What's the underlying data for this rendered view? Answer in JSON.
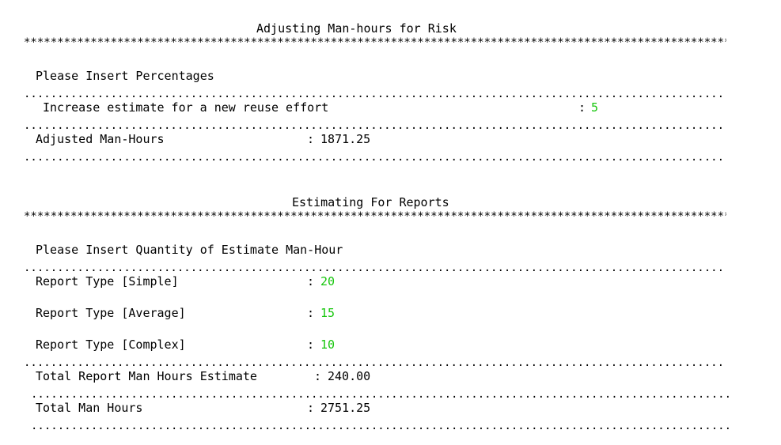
{
  "risk": {
    "title": "Adjusting Man-hours for Risk",
    "prompt": "Please Insert Percentages",
    "reuse_label": "Increase estimate for a new reuse effort",
    "reuse_sep": ":",
    "reuse_value": "5",
    "adjusted_label": "Adjusted Man-Hours",
    "adjusted_sep": ":",
    "adjusted_value": "1871.25"
  },
  "reports": {
    "title": "Estimating For Reports",
    "prompt": "Please Insert Quantity of Estimate Man-Hour",
    "rows": [
      {
        "label": "Report Type [Simple]",
        "sep": ":",
        "value": "20"
      },
      {
        "label": "Report Type [Average]",
        "sep": ":",
        "value": "15"
      },
      {
        "label": "Report Type [Complex]",
        "sep": ":",
        "value": "10"
      }
    ],
    "total_report_label": "Total Report Man Hours Estimate",
    "total_report_sep": ":",
    "total_report_value": "240.00",
    "total_label": "Total Man Hours",
    "total_sep": ":",
    "total_value": "2751.25"
  },
  "colors": {
    "input_value": "#16c60c",
    "text": "#000000",
    "background": "#ffffff"
  }
}
